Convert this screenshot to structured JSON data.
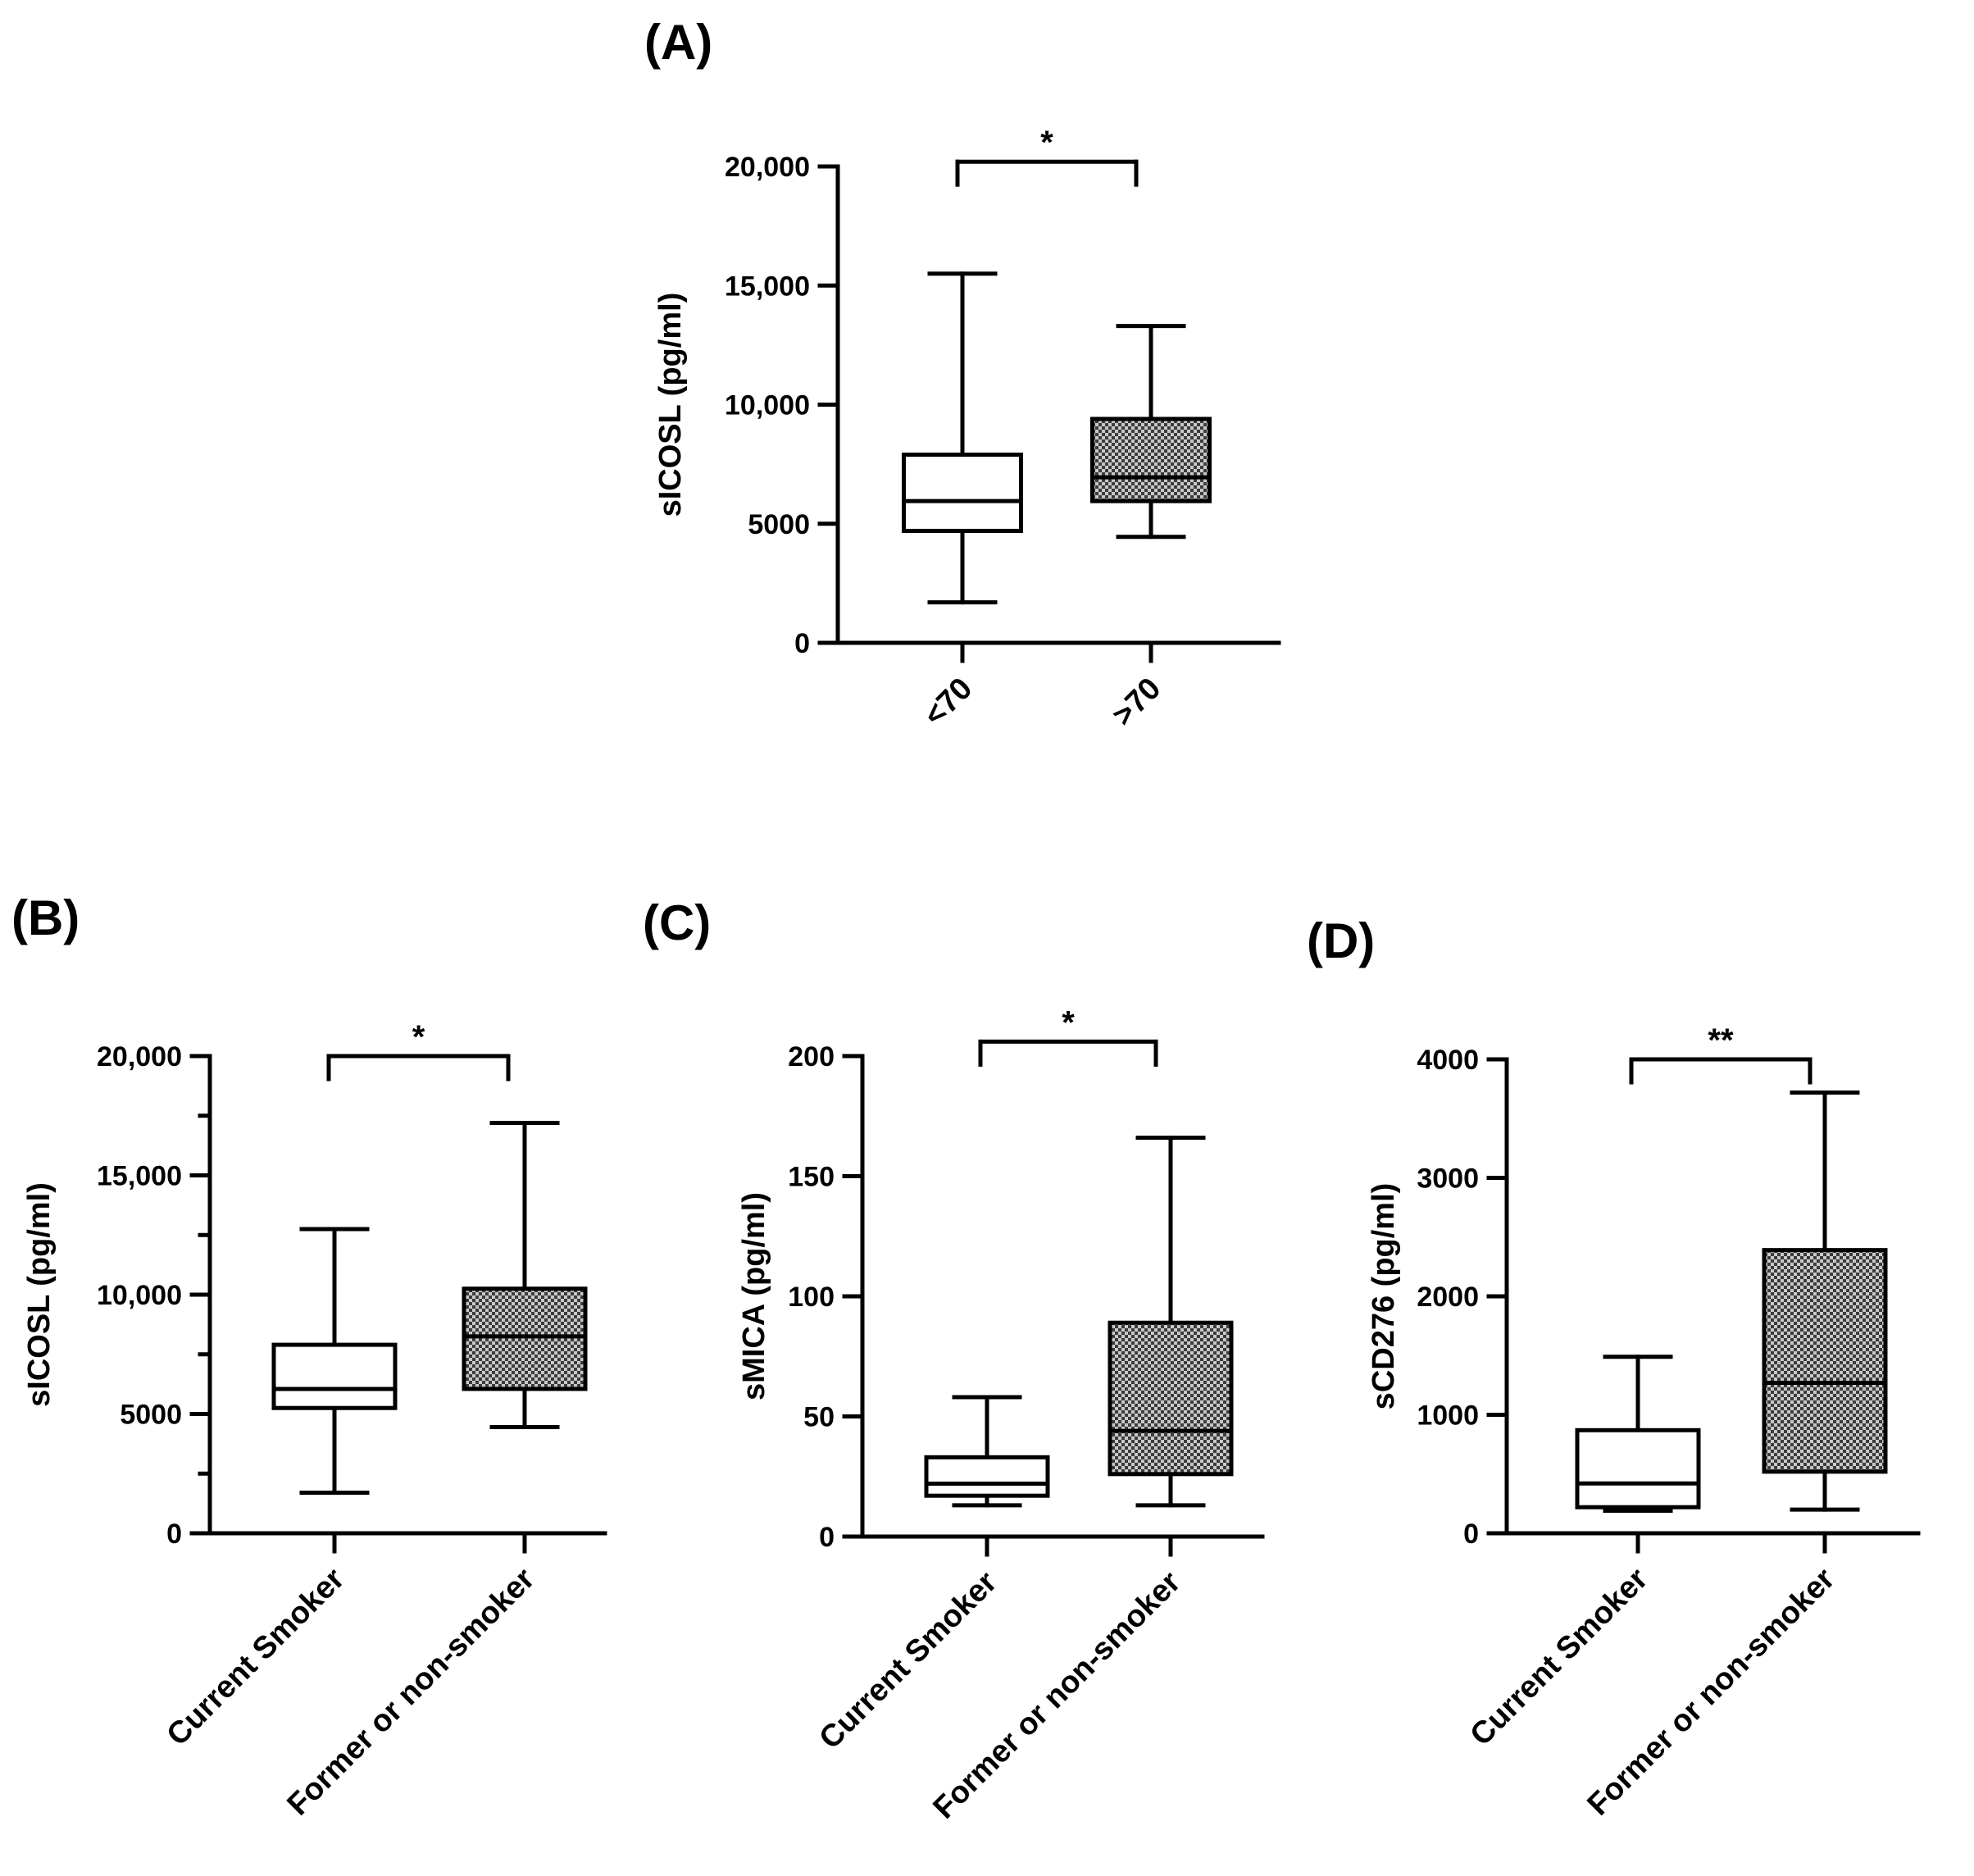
{
  "figure": {
    "colors": {
      "ink": "#000000",
      "open_fill": "#ffffff",
      "patterned_fill": "checkerboard-gray"
    },
    "box_styles": [
      "open",
      "patterned"
    ]
  },
  "chart_data": [
    {
      "panel": "(A)",
      "type": "box",
      "ylabel": "sICOSL (pg/ml)",
      "ylim": [
        0,
        20000
      ],
      "yticks": [
        0,
        5000,
        10000,
        15000,
        20000
      ],
      "ytick_labels": [
        "0",
        "5000",
        "10,000",
        "15,000",
        "20,000"
      ],
      "minor_ticks": false,
      "categories": [
        "<70",
        ">70"
      ],
      "boxes": [
        {
          "min": 1700,
          "q1": 4700,
          "median": 5950,
          "q3": 7900,
          "max": 15500
        },
        {
          "min": 4450,
          "q1": 5950,
          "median": 6950,
          "q3": 9400,
          "max": 13300
        }
      ],
      "significance": {
        "label": "*",
        "bracket_y": 20200
      }
    },
    {
      "panel": "(B)",
      "type": "box",
      "ylabel": "sICOSL (pg/ml)",
      "ylim": [
        0,
        20000
      ],
      "yticks": [
        0,
        5000,
        10000,
        15000,
        20000
      ],
      "ytick_labels": [
        "0",
        "5000",
        "10,000",
        "15,000",
        "20,000"
      ],
      "minor_ticks": true,
      "categories": [
        "Current Smoker",
        "Former or non-smoker"
      ],
      "boxes": [
        {
          "min": 1700,
          "q1": 5250,
          "median": 6050,
          "q3": 7900,
          "max": 12750
        },
        {
          "min": 4450,
          "q1": 6050,
          "median": 8250,
          "q3": 10250,
          "max": 17200
        }
      ],
      "significance": {
        "label": "*",
        "bracket_y": 20000
      }
    },
    {
      "panel": "(C)",
      "type": "box",
      "ylabel": "sMICA (pg/ml)",
      "ylim": [
        0,
        200
      ],
      "yticks": [
        0,
        50,
        100,
        150,
        200
      ],
      "ytick_labels": [
        "0",
        "50",
        "100",
        "150",
        "200"
      ],
      "minor_ticks": false,
      "categories": [
        "Current Smoker",
        "Former or non-smoker"
      ],
      "boxes": [
        {
          "min": 13,
          "q1": 17,
          "median": 22,
          "q3": 33,
          "max": 58
        },
        {
          "min": 13,
          "q1": 26,
          "median": 44,
          "q3": 89,
          "max": 166
        }
      ],
      "significance": {
        "label": "*",
        "bracket_y": 206
      }
    },
    {
      "panel": "(D)",
      "type": "box",
      "ylabel": "sCD276 (pg/ml)",
      "ylim": [
        0,
        4000
      ],
      "yticks": [
        0,
        1000,
        2000,
        3000,
        4000
      ],
      "ytick_labels": [
        "0",
        "1000",
        "2000",
        "3000",
        "4000"
      ],
      "minor_ticks": false,
      "categories": [
        "Current Smoker",
        "Former or non-smoker"
      ],
      "boxes": [
        {
          "min": 190,
          "q1": 220,
          "median": 420,
          "q3": 870,
          "max": 1490
        },
        {
          "min": 200,
          "q1": 520,
          "median": 1270,
          "q3": 2390,
          "max": 3720
        }
      ],
      "significance": {
        "label": "**",
        "bracket_y": 4000
      }
    }
  ]
}
